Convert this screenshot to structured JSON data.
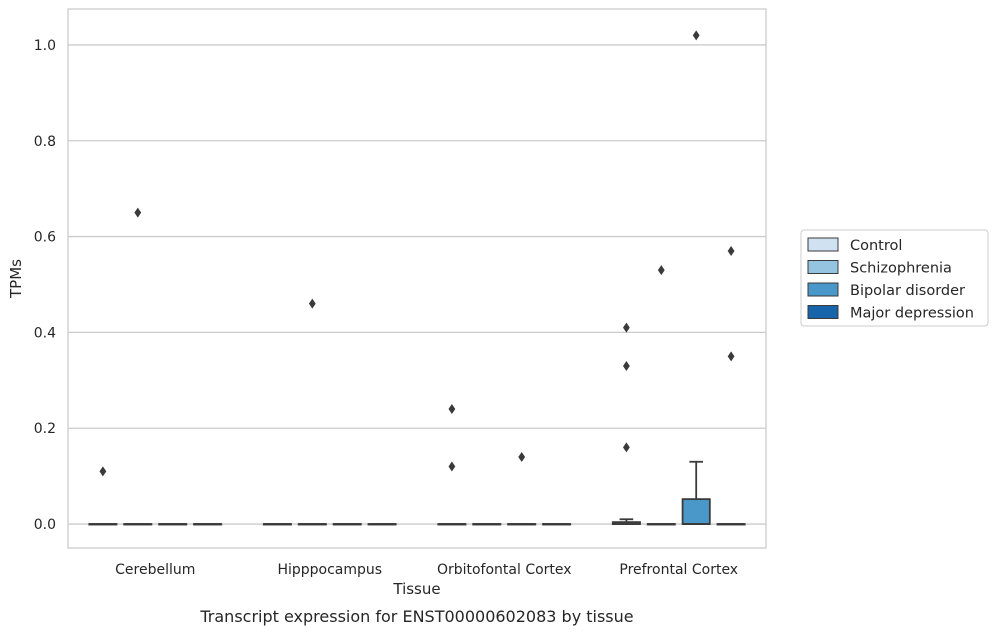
{
  "caption": "Transcript expression for ENST00000602083 by tissue",
  "chart_data": {
    "type": "box",
    "title": "",
    "xlabel": "Tissue",
    "ylabel": "TPMs",
    "ylim": [
      -0.05,
      1.075
    ],
    "yticks": [
      0.0,
      0.2,
      0.4,
      0.6,
      0.8,
      1.0
    ],
    "ytick_labels": [
      "0.0",
      "0.2",
      "0.4",
      "0.6",
      "0.8",
      "1.0"
    ],
    "grid": true,
    "legend_position": "right",
    "categories": [
      "Cerebellum",
      "Hipppocampus",
      "Orbitofontal Cortex",
      "Prefrontal Cortex"
    ],
    "series": [
      {
        "name": "Control",
        "color": "#d0e1f2",
        "boxes": [
          {
            "q1": 0,
            "median": 0,
            "q3": 0,
            "whisker_low": 0,
            "whisker_high": 0,
            "outliers": [
              0.11
            ]
          },
          {
            "q1": 0,
            "median": 0,
            "q3": 0,
            "whisker_low": 0,
            "whisker_high": 0,
            "outliers": []
          },
          {
            "q1": 0,
            "median": 0,
            "q3": 0,
            "whisker_low": 0,
            "whisker_high": 0,
            "outliers": [
              0.12,
              0.24
            ]
          },
          {
            "q1": 0,
            "median": 0,
            "q3": 0.004,
            "whisker_low": 0,
            "whisker_high": 0.01,
            "outliers": [
              0.16,
              0.33,
              0.41
            ]
          }
        ]
      },
      {
        "name": "Schizophrenia",
        "color": "#94c4df",
        "boxes": [
          {
            "q1": 0,
            "median": 0,
            "q3": 0,
            "whisker_low": 0,
            "whisker_high": 0,
            "outliers": [
              0.65
            ]
          },
          {
            "q1": 0,
            "median": 0,
            "q3": 0,
            "whisker_low": 0,
            "whisker_high": 0,
            "outliers": [
              0.46
            ]
          },
          {
            "q1": 0,
            "median": 0,
            "q3": 0,
            "whisker_low": 0,
            "whisker_high": 0,
            "outliers": []
          },
          {
            "q1": 0,
            "median": 0,
            "q3": 0,
            "whisker_low": 0,
            "whisker_high": 0,
            "outliers": [
              0.53
            ]
          }
        ]
      },
      {
        "name": "Bipolar disorder",
        "color": "#4a98c9",
        "boxes": [
          {
            "q1": 0,
            "median": 0,
            "q3": 0,
            "whisker_low": 0,
            "whisker_high": 0,
            "outliers": []
          },
          {
            "q1": 0,
            "median": 0,
            "q3": 0,
            "whisker_low": 0,
            "whisker_high": 0,
            "outliers": []
          },
          {
            "q1": 0,
            "median": 0,
            "q3": 0,
            "whisker_low": 0,
            "whisker_high": 0,
            "outliers": [
              0.14
            ]
          },
          {
            "q1": 0,
            "median": 0,
            "q3": 0.052,
            "whisker_low": 0,
            "whisker_high": 0.13,
            "outliers": [
              1.02
            ]
          }
        ]
      },
      {
        "name": "Major depression",
        "color": "#1764ab",
        "boxes": [
          {
            "q1": 0,
            "median": 0,
            "q3": 0,
            "whisker_low": 0,
            "whisker_high": 0,
            "outliers": []
          },
          {
            "q1": 0,
            "median": 0,
            "q3": 0,
            "whisker_low": 0,
            "whisker_high": 0,
            "outliers": []
          },
          {
            "q1": 0,
            "median": 0,
            "q3": 0,
            "whisker_low": 0,
            "whisker_high": 0,
            "outliers": []
          },
          {
            "q1": 0,
            "median": 0,
            "q3": 0,
            "whisker_low": 0,
            "whisker_high": 0,
            "outliers": [
              0.35,
              0.57
            ]
          }
        ]
      }
    ]
  }
}
